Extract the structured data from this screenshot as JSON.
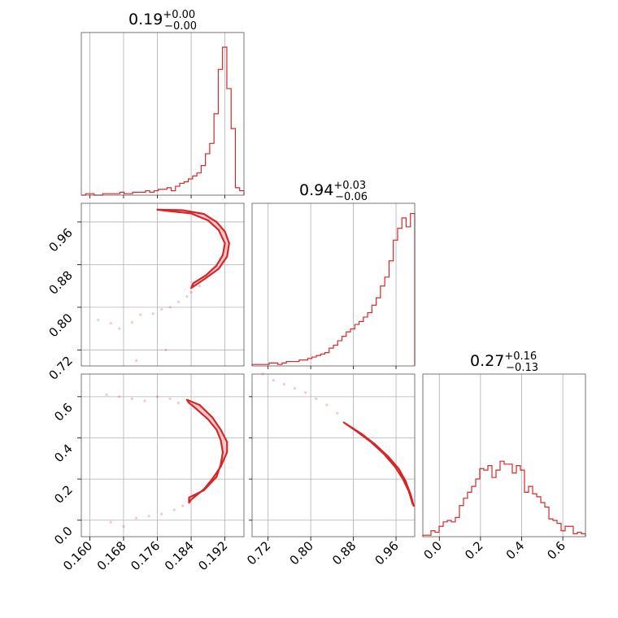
{
  "chart_data": {
    "type": "corner",
    "color": "#d62728",
    "parameters": [
      {
        "title_main": "0.19",
        "title_up": "+0.00",
        "title_down": "−0.00",
        "range": [
          0.158,
          0.1965
        ],
        "ticks": [
          0.16,
          0.168,
          0.176,
          0.184,
          0.192
        ],
        "tick_labels": [
          "0.160",
          "0.168",
          "0.176",
          "0.184",
          "0.192"
        ]
      },
      {
        "title_main": "0.94",
        "title_up": "+0.03",
        "title_down": "−0.06",
        "range": [
          0.69,
          0.995
        ],
        "ticks": [
          0.72,
          0.8,
          0.88,
          0.96
        ],
        "tick_labels": [
          "0.72",
          "0.80",
          "0.88",
          "0.96"
        ]
      },
      {
        "title_main": "0.27",
        "title_up": "+0.16",
        "title_down": "−0.13",
        "range": [
          -0.08,
          0.71
        ],
        "ticks": [
          0.0,
          0.2,
          0.4,
          0.6
        ],
        "tick_labels": [
          "0.0",
          "0.2",
          "0.4",
          "0.6"
        ]
      }
    ],
    "histograms": [
      {
        "param": 0,
        "values": [
          0,
          1,
          1,
          0,
          0,
          1,
          1,
          1,
          1,
          2,
          1,
          1,
          2,
          2,
          2,
          3,
          2,
          3,
          4,
          4,
          5,
          3,
          6,
          8,
          9,
          11,
          13,
          15,
          20,
          28,
          35,
          55,
          85,
          100,
          72,
          45,
          5,
          3
        ]
      },
      {
        "param": 1,
        "values": [
          1,
          1,
          1,
          1,
          2,
          2,
          1,
          2,
          3,
          3,
          3,
          4,
          4,
          5,
          6,
          7,
          8,
          9,
          12,
          14,
          17,
          20,
          23,
          25,
          28,
          30,
          33,
          36,
          41,
          46,
          54,
          60,
          71,
          85,
          93,
          100,
          94,
          103
        ]
      },
      {
        "param": 2,
        "values": [
          1,
          1,
          4,
          3,
          7,
          10,
          11,
          10,
          13,
          21,
          26,
          30,
          34,
          39,
          46,
          45,
          48,
          40,
          45,
          51,
          49,
          49,
          43,
          48,
          45,
          30,
          34,
          29,
          27,
          23,
          20,
          12,
          11,
          9,
          4,
          7,
          7,
          2,
          3,
          2
        ]
      }
    ],
    "contours": [
      {
        "x": 0,
        "y": 1,
        "path": [
          [
            0.176,
            0.983
          ],
          [
            0.182,
            0.982
          ],
          [
            0.187,
            0.975
          ],
          [
            0.19,
            0.96
          ],
          [
            0.192,
            0.942
          ],
          [
            0.193,
            0.92
          ],
          [
            0.1925,
            0.895
          ],
          [
            0.1905,
            0.872
          ],
          [
            0.187,
            0.852
          ],
          [
            0.184,
            0.836
          ],
          [
            0.1845,
            0.845
          ],
          [
            0.1875,
            0.86
          ],
          [
            0.19,
            0.878
          ],
          [
            0.1915,
            0.898
          ],
          [
            0.192,
            0.92
          ],
          [
            0.1905,
            0.945
          ],
          [
            0.188,
            0.963
          ],
          [
            0.184,
            0.976
          ],
          [
            0.178,
            0.981
          ],
          [
            0.176,
            0.983
          ]
        ]
      },
      {
        "x": 0,
        "y": 2,
        "path": [
          [
            0.183,
            0.585
          ],
          [
            0.186,
            0.56
          ],
          [
            0.189,
            0.5
          ],
          [
            0.191,
            0.44
          ],
          [
            0.1925,
            0.38
          ],
          [
            0.1925,
            0.33
          ],
          [
            0.191,
            0.26
          ],
          [
            0.189,
            0.2
          ],
          [
            0.187,
            0.15
          ],
          [
            0.184,
            0.1
          ],
          [
            0.1835,
            0.085
          ],
          [
            0.1835,
            0.11
          ],
          [
            0.187,
            0.145
          ],
          [
            0.19,
            0.21
          ],
          [
            0.191,
            0.27
          ],
          [
            0.1915,
            0.33
          ],
          [
            0.191,
            0.39
          ],
          [
            0.19,
            0.44
          ],
          [
            0.188,
            0.49
          ],
          [
            0.185,
            0.545
          ],
          [
            0.1835,
            0.57
          ],
          [
            0.183,
            0.585
          ]
        ]
      },
      {
        "x": 1,
        "y": 2,
        "path": [
          [
            0.865,
            0.47
          ],
          [
            0.895,
            0.42
          ],
          [
            0.92,
            0.37
          ],
          [
            0.945,
            0.31
          ],
          [
            0.965,
            0.25
          ],
          [
            0.978,
            0.19
          ],
          [
            0.988,
            0.12
          ],
          [
            0.993,
            0.07
          ],
          [
            0.991,
            0.08
          ],
          [
            0.984,
            0.14
          ],
          [
            0.973,
            0.2
          ],
          [
            0.958,
            0.26
          ],
          [
            0.938,
            0.32
          ],
          [
            0.913,
            0.38
          ],
          [
            0.887,
            0.43
          ],
          [
            0.862,
            0.475
          ],
          [
            0.865,
            0.47
          ]
        ]
      }
    ],
    "scatter": [
      {
        "x": 0,
        "y": 1,
        "points": [
          [
            0.162,
            0.776
          ],
          [
            0.165,
            0.77
          ],
          [
            0.167,
            0.76
          ],
          [
            0.17,
            0.772
          ],
          [
            0.172,
            0.786
          ],
          [
            0.175,
            0.788
          ],
          [
            0.177,
            0.796
          ],
          [
            0.179,
            0.8
          ],
          [
            0.181,
            0.81
          ],
          [
            0.183,
            0.82
          ],
          [
            0.184,
            0.828
          ],
          [
            0.186,
            0.84
          ],
          [
            0.171,
            0.7
          ],
          [
            0.178,
            0.72
          ]
        ]
      },
      {
        "x": 0,
        "y": 2,
        "points": [
          [
            0.164,
            0.61
          ],
          [
            0.167,
            0.6
          ],
          [
            0.17,
            0.59
          ],
          [
            0.173,
            0.58
          ],
          [
            0.176,
            0.6
          ],
          [
            0.179,
            0.59
          ],
          [
            0.181,
            0.57
          ],
          [
            0.165,
            -0.01
          ],
          [
            0.168,
            -0.03
          ],
          [
            0.171,
            0.01
          ],
          [
            0.174,
            0.02
          ],
          [
            0.177,
            0.03
          ],
          [
            0.18,
            0.05
          ],
          [
            0.182,
            0.07
          ]
        ]
      },
      {
        "x": 1,
        "y": 2,
        "points": [
          [
            0.71,
            0.71
          ],
          [
            0.73,
            0.68
          ],
          [
            0.75,
            0.66
          ],
          [
            0.77,
            0.64
          ],
          [
            0.79,
            0.62
          ],
          [
            0.81,
            0.59
          ],
          [
            0.83,
            0.56
          ],
          [
            0.85,
            0.52
          ]
        ]
      }
    ]
  }
}
